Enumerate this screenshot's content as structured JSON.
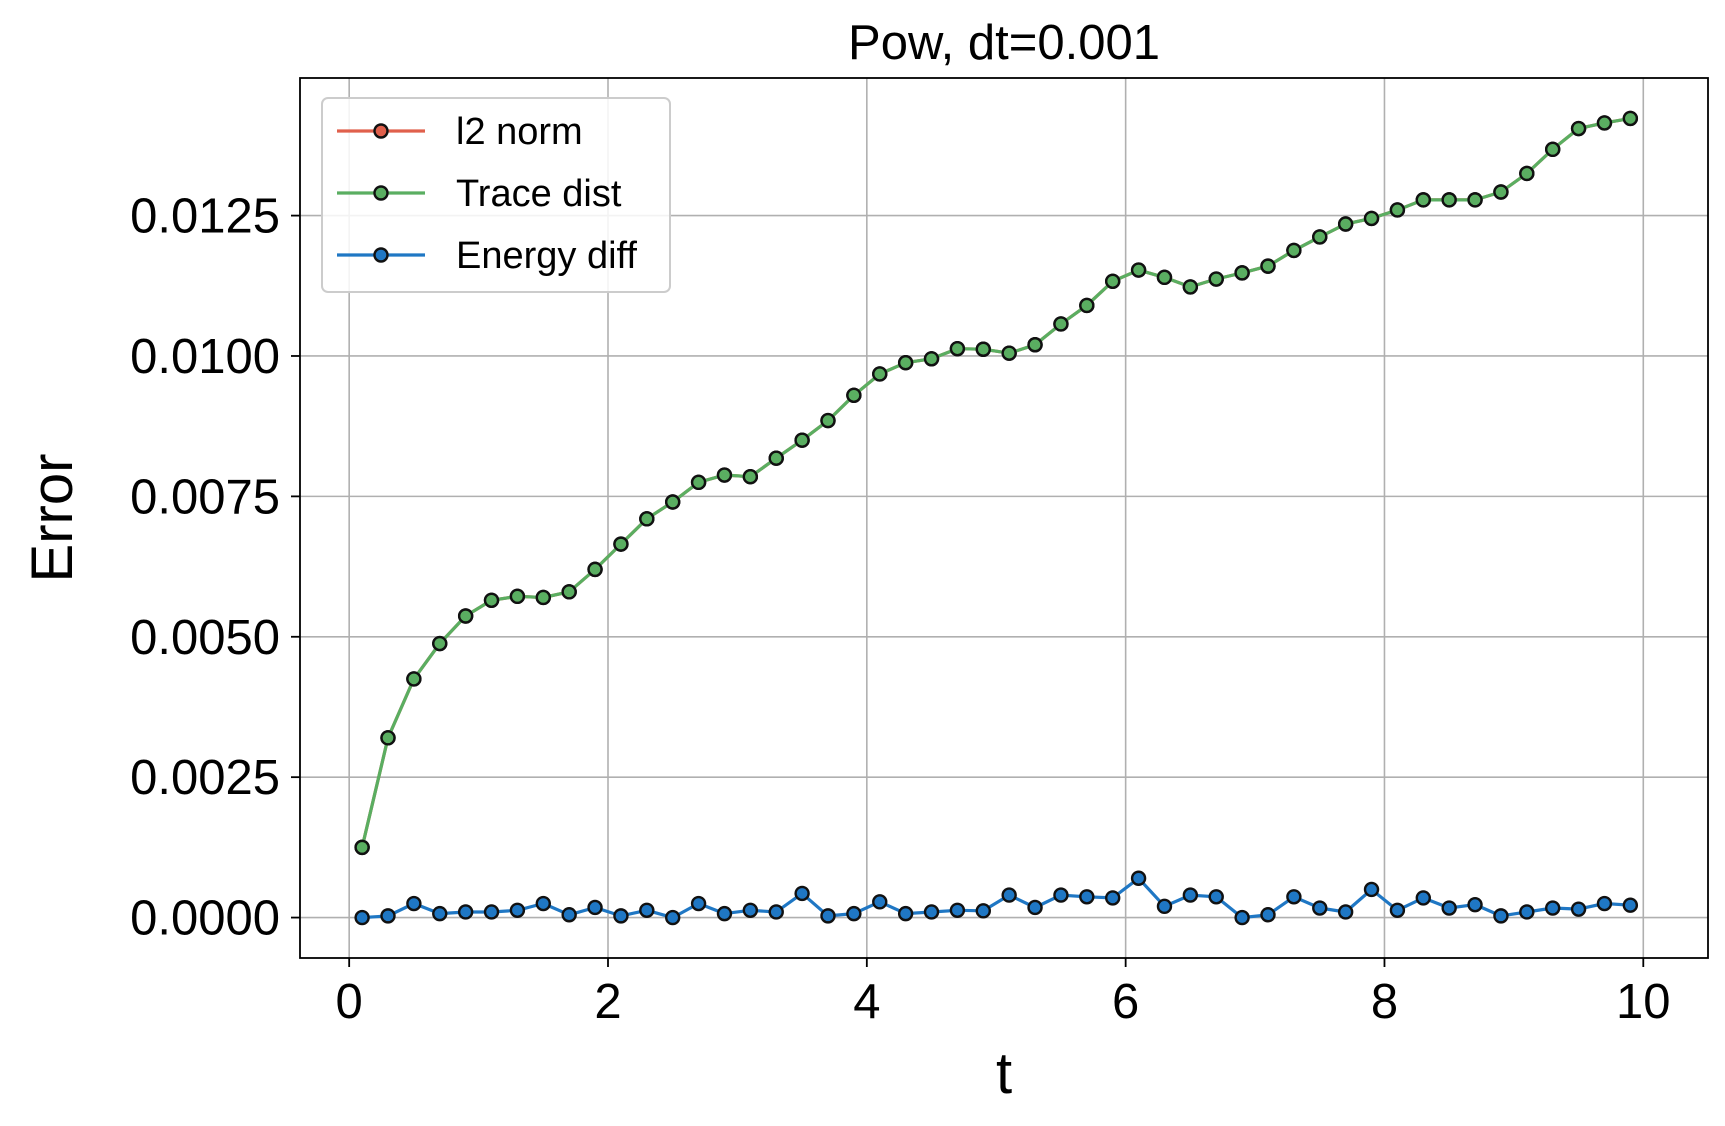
{
  "chart_data": {
    "type": "line",
    "title": "Pow, dt=0.001",
    "xlabel": "t",
    "ylabel": "Error",
    "xlim": [
      -0.38,
      10.5
    ],
    "ylim": [
      -0.00072,
      0.01495
    ],
    "xticks": [
      0,
      2,
      4,
      6,
      8,
      10
    ],
    "xtick_labels": [
      "0",
      "2",
      "4",
      "6",
      "8",
      "10"
    ],
    "yticks": [
      0.0,
      0.0025,
      0.005,
      0.0075,
      0.01,
      0.0125
    ],
    "ytick_labels": [
      "0.0000",
      "0.0025",
      "0.0050",
      "0.0075",
      "0.0100",
      "0.0125"
    ],
    "grid": true,
    "legend_position": "top-left",
    "x": [
      0.1,
      0.3,
      0.5,
      0.7,
      0.9,
      1.1,
      1.3,
      1.5,
      1.7,
      1.9,
      2.1,
      2.3,
      2.5,
      2.7,
      2.9,
      3.1,
      3.3,
      3.5,
      3.7,
      3.9,
      4.1,
      4.3,
      4.5,
      4.7,
      4.9,
      5.1,
      5.3,
      5.5,
      5.7,
      5.9,
      6.1,
      6.3,
      6.5,
      6.7,
      6.9,
      7.1,
      7.3,
      7.5,
      7.7,
      7.9,
      8.1,
      8.3,
      8.5,
      8.7,
      8.9,
      9.1,
      9.3,
      9.5,
      9.7,
      9.9
    ],
    "series": [
      {
        "name": "l2 norm",
        "color": "#e0604c",
        "values": [
          0.00125,
          0.0032,
          0.00425,
          0.00488,
          0.00537,
          0.00565,
          0.00572,
          0.0057,
          0.0058,
          0.0062,
          0.00665,
          0.0071,
          0.0074,
          0.00775,
          0.00788,
          0.00785,
          0.00818,
          0.0085,
          0.00885,
          0.0093,
          0.00968,
          0.00988,
          0.00995,
          0.01013,
          0.01012,
          0.01005,
          0.0102,
          0.01057,
          0.0109,
          0.01133,
          0.01153,
          0.0114,
          0.01123,
          0.01137,
          0.01148,
          0.0116,
          0.01188,
          0.01212,
          0.01235,
          0.01245,
          0.0126,
          0.01278,
          0.01278,
          0.01278,
          0.01292,
          0.01325,
          0.01368,
          0.01405,
          0.01415,
          0.01423
        ]
      },
      {
        "name": "Trace dist",
        "color": "#5aae61",
        "values": [
          0.00125,
          0.0032,
          0.00425,
          0.00488,
          0.00537,
          0.00565,
          0.00572,
          0.0057,
          0.0058,
          0.0062,
          0.00665,
          0.0071,
          0.0074,
          0.00775,
          0.00788,
          0.00785,
          0.00818,
          0.0085,
          0.00885,
          0.0093,
          0.00968,
          0.00988,
          0.00995,
          0.01013,
          0.01012,
          0.01005,
          0.0102,
          0.01057,
          0.0109,
          0.01133,
          0.01153,
          0.0114,
          0.01123,
          0.01137,
          0.01148,
          0.0116,
          0.01188,
          0.01212,
          0.01235,
          0.01245,
          0.0126,
          0.01278,
          0.01278,
          0.01278,
          0.01292,
          0.01325,
          0.01368,
          0.01405,
          0.01415,
          0.01423
        ]
      },
      {
        "name": "Energy diff",
        "color": "#1f77c4",
        "values": [
          0.0,
          3e-05,
          0.00025,
          7e-05,
          0.0001,
          0.0001,
          0.00013,
          0.00025,
          5e-05,
          0.00018,
          3e-05,
          0.00013,
          0.0,
          0.00025,
          7e-05,
          0.00013,
          0.0001,
          0.00043,
          3e-05,
          7e-05,
          0.00028,
          7e-05,
          0.0001,
          0.00013,
          0.00012,
          0.0004,
          0.00018,
          0.0004,
          0.00037,
          0.00035,
          0.0007,
          0.0002,
          0.0004,
          0.00037,
          0.0,
          5e-05,
          0.00037,
          0.00017,
          0.0001,
          0.0005,
          0.00013,
          0.00035,
          0.00017,
          0.00023,
          3e-05,
          0.0001,
          0.00017,
          0.00015,
          0.00025,
          0.00022
        ]
      }
    ]
  }
}
